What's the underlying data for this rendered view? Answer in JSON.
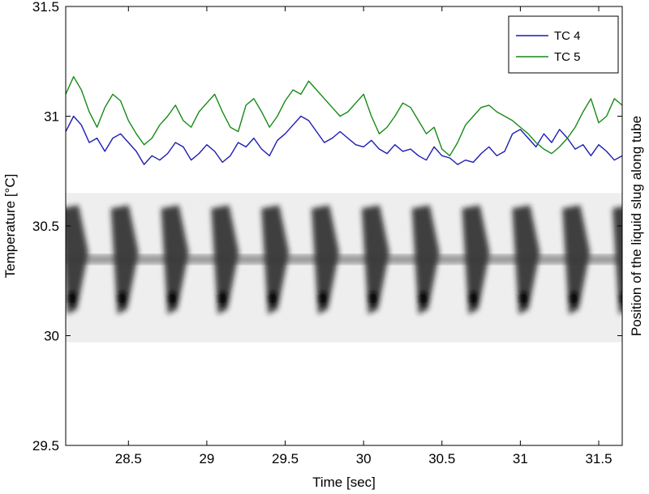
{
  "chart_data": {
    "type": "line",
    "xlabel": "Time [sec]",
    "ylabel": "Temperature [°C]",
    "y2label": "Position of the liquid slug along tube",
    "xlim": [
      28.1,
      31.65
    ],
    "ylim": [
      29.5,
      31.5
    ],
    "xticks": [
      28.5,
      29,
      29.5,
      30,
      30.5,
      31,
      31.5
    ],
    "xtick_labels": [
      "28.5",
      "29",
      "29.5",
      "30",
      "30.5",
      "31",
      "31.5"
    ],
    "yticks": [
      29.5,
      30,
      30.5,
      31,
      31.5
    ],
    "ytick_labels": [
      "29.5",
      "30",
      "30.5",
      "31",
      "31.5"
    ],
    "grid": false,
    "legend_position": "top-right",
    "series": [
      {
        "name": "TC 4",
        "color": "#1c1cb4",
        "x": [
          28.1,
          28.15,
          28.2,
          28.25,
          28.3,
          28.35,
          28.4,
          28.45,
          28.5,
          28.55,
          28.6,
          28.65,
          28.7,
          28.75,
          28.8,
          28.85,
          28.9,
          28.95,
          29.0,
          29.05,
          29.1,
          29.15,
          29.2,
          29.25,
          29.3,
          29.35,
          29.4,
          29.45,
          29.5,
          29.55,
          29.6,
          29.65,
          29.7,
          29.75,
          29.8,
          29.85,
          29.9,
          29.95,
          30.0,
          30.05,
          30.1,
          30.15,
          30.2,
          30.25,
          30.3,
          30.35,
          30.4,
          30.45,
          30.5,
          30.55,
          30.6,
          30.65,
          30.7,
          30.75,
          30.8,
          30.85,
          30.9,
          30.95,
          31.0,
          31.05,
          31.1,
          31.15,
          31.2,
          31.25,
          31.3,
          31.35,
          31.4,
          31.45,
          31.5,
          31.55,
          31.6,
          31.65
        ],
        "y": [
          30.93,
          31.0,
          30.96,
          30.88,
          30.9,
          30.84,
          30.9,
          30.92,
          30.88,
          30.84,
          30.78,
          30.82,
          30.8,
          30.83,
          30.88,
          30.86,
          30.8,
          30.83,
          30.87,
          30.84,
          30.79,
          30.82,
          30.88,
          30.86,
          30.9,
          30.85,
          30.82,
          30.89,
          30.92,
          30.96,
          31.0,
          30.98,
          30.93,
          30.88,
          30.9,
          30.93,
          30.9,
          30.87,
          30.86,
          30.89,
          30.85,
          30.83,
          30.87,
          30.84,
          30.85,
          30.82,
          30.8,
          30.86,
          30.82,
          30.81,
          30.78,
          30.8,
          30.79,
          30.83,
          30.86,
          30.82,
          30.84,
          30.92,
          30.94,
          30.9,
          30.86,
          30.92,
          30.88,
          30.94,
          30.9,
          30.85,
          30.87,
          30.82,
          30.87,
          30.84,
          30.8,
          30.82
        ]
      },
      {
        "name": "TC 5",
        "color": "#178a17",
        "x": [
          28.1,
          28.15,
          28.2,
          28.25,
          28.3,
          28.35,
          28.4,
          28.45,
          28.5,
          28.55,
          28.6,
          28.65,
          28.7,
          28.75,
          28.8,
          28.85,
          28.9,
          28.95,
          29.0,
          29.05,
          29.1,
          29.15,
          29.2,
          29.25,
          29.3,
          29.35,
          29.4,
          29.45,
          29.5,
          29.55,
          29.6,
          29.65,
          29.7,
          29.75,
          29.8,
          29.85,
          29.9,
          29.95,
          30.0,
          30.05,
          30.1,
          30.15,
          30.2,
          30.25,
          30.3,
          30.35,
          30.4,
          30.45,
          30.5,
          30.55,
          30.6,
          30.65,
          30.7,
          30.75,
          30.8,
          30.85,
          30.9,
          30.95,
          31.0,
          31.05,
          31.1,
          31.15,
          31.2,
          31.25,
          31.3,
          31.35,
          31.4,
          31.45,
          31.5,
          31.55,
          31.6,
          31.65
        ],
        "y": [
          31.1,
          31.18,
          31.12,
          31.02,
          30.95,
          31.04,
          31.1,
          31.07,
          30.98,
          30.92,
          30.87,
          30.9,
          30.96,
          31.0,
          31.05,
          30.98,
          30.95,
          31.02,
          31.06,
          31.1,
          31.02,
          30.95,
          30.93,
          31.05,
          31.08,
          31.02,
          30.95,
          31.0,
          31.07,
          31.12,
          31.1,
          31.16,
          31.12,
          31.08,
          31.04,
          31.0,
          31.02,
          31.06,
          31.1,
          31.0,
          30.92,
          30.95,
          31.0,
          31.06,
          31.04,
          30.98,
          30.92,
          30.95,
          30.85,
          30.82,
          30.88,
          30.96,
          31.0,
          31.04,
          31.05,
          31.02,
          31.0,
          30.98,
          30.95,
          30.92,
          30.88,
          30.85,
          30.83,
          30.86,
          30.9,
          30.95,
          31.02,
          31.08,
          30.97,
          31.0,
          31.08,
          31.05
        ]
      }
    ]
  }
}
